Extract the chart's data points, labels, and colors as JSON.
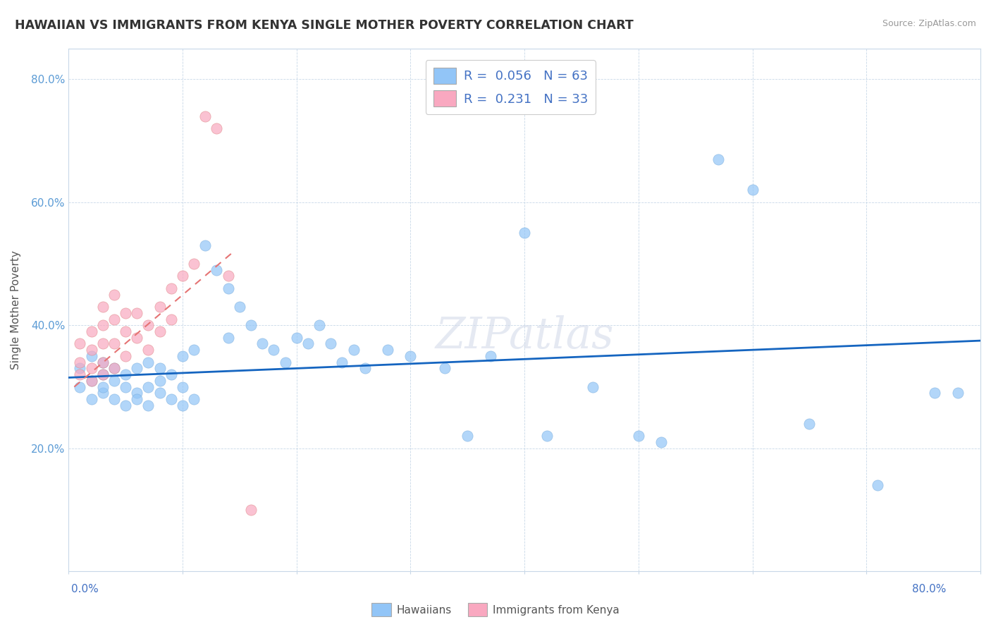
{
  "title": "HAWAIIAN VS IMMIGRANTS FROM KENYA SINGLE MOTHER POVERTY CORRELATION CHART",
  "source": "Source: ZipAtlas.com",
  "ylabel": "Single Mother Poverty",
  "y_ticks": [
    0.0,
    0.2,
    0.4,
    0.6,
    0.8
  ],
  "y_tick_labels": [
    "",
    "20.0%",
    "40.0%",
    "60.0%",
    "80.0%"
  ],
  "xlim": [
    0.0,
    0.8
  ],
  "ylim": [
    0.0,
    0.85
  ],
  "hawaiians_R": 0.056,
  "hawaiians_N": 63,
  "kenya_R": 0.231,
  "kenya_N": 33,
  "legend_labels": [
    "Hawaiians",
    "Immigrants from Kenya"
  ],
  "hawaiian_color": "#92C5F7",
  "kenya_color": "#F9A8C0",
  "hawaiian_line_color": "#1565C0",
  "kenya_line_color": "#E57373",
  "watermark_color": "#D0D8E8",
  "watermark_alpha": 0.55,
  "hawaiians_x": [
    0.01,
    0.01,
    0.02,
    0.02,
    0.02,
    0.03,
    0.03,
    0.03,
    0.03,
    0.04,
    0.04,
    0.04,
    0.05,
    0.05,
    0.05,
    0.06,
    0.06,
    0.06,
    0.07,
    0.07,
    0.07,
    0.08,
    0.08,
    0.08,
    0.09,
    0.09,
    0.1,
    0.1,
    0.1,
    0.11,
    0.11,
    0.12,
    0.13,
    0.14,
    0.14,
    0.15,
    0.16,
    0.17,
    0.18,
    0.19,
    0.2,
    0.21,
    0.22,
    0.23,
    0.24,
    0.25,
    0.26,
    0.28,
    0.3,
    0.33,
    0.35,
    0.37,
    0.4,
    0.42,
    0.46,
    0.5,
    0.52,
    0.57,
    0.6,
    0.65,
    0.71,
    0.76,
    0.78
  ],
  "hawaiians_y": [
    0.33,
    0.3,
    0.31,
    0.28,
    0.35,
    0.32,
    0.29,
    0.34,
    0.3,
    0.31,
    0.28,
    0.33,
    0.3,
    0.27,
    0.32,
    0.29,
    0.33,
    0.28,
    0.3,
    0.34,
    0.27,
    0.31,
    0.29,
    0.33,
    0.28,
    0.32,
    0.35,
    0.3,
    0.27,
    0.36,
    0.28,
    0.53,
    0.49,
    0.46,
    0.38,
    0.43,
    0.4,
    0.37,
    0.36,
    0.34,
    0.38,
    0.37,
    0.4,
    0.37,
    0.34,
    0.36,
    0.33,
    0.36,
    0.35,
    0.33,
    0.22,
    0.35,
    0.55,
    0.22,
    0.3,
    0.22,
    0.21,
    0.67,
    0.62,
    0.24,
    0.14,
    0.29,
    0.29
  ],
  "kenya_x": [
    0.01,
    0.01,
    0.01,
    0.02,
    0.02,
    0.02,
    0.02,
    0.03,
    0.03,
    0.03,
    0.03,
    0.03,
    0.04,
    0.04,
    0.04,
    0.04,
    0.05,
    0.05,
    0.05,
    0.06,
    0.06,
    0.07,
    0.07,
    0.08,
    0.08,
    0.09,
    0.09,
    0.1,
    0.11,
    0.12,
    0.13,
    0.14,
    0.16
  ],
  "kenya_y": [
    0.32,
    0.34,
    0.37,
    0.31,
    0.33,
    0.36,
    0.39,
    0.32,
    0.34,
    0.37,
    0.4,
    0.43,
    0.33,
    0.37,
    0.41,
    0.45,
    0.35,
    0.39,
    0.42,
    0.38,
    0.42,
    0.36,
    0.4,
    0.39,
    0.43,
    0.41,
    0.46,
    0.48,
    0.5,
    0.74,
    0.72,
    0.48,
    0.1
  ],
  "hawaii_line_x": [
    0.0,
    0.8
  ],
  "hawaii_line_y": [
    0.315,
    0.375
  ],
  "kenya_line_x": [
    0.005,
    0.145
  ],
  "kenya_line_y": [
    0.3,
    0.52
  ]
}
